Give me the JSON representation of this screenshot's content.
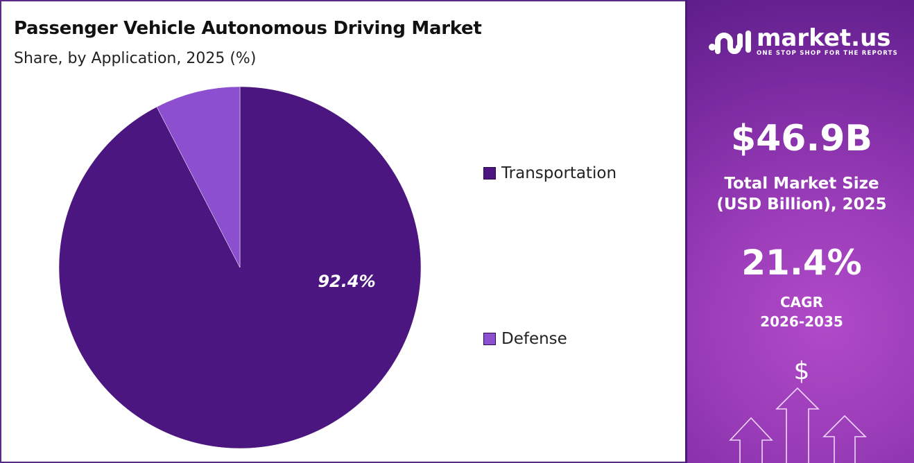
{
  "title": "Passenger Vehicle Autonomous Driving Market",
  "subtitle": "Share, by Application, 2025 (%)",
  "chart_data": {
    "type": "pie",
    "title": "Passenger Vehicle Autonomous Driving Market",
    "subtitle": "Share, by Application, 2025 (%)",
    "categories": [
      "Transportation",
      "Defense"
    ],
    "values": [
      92.4,
      7.6
    ],
    "data_labels": [
      "92.4%",
      ""
    ],
    "colors": [
      "#4b1680",
      "#8b4fd0"
    ],
    "legend": "right"
  },
  "sidebar": {
    "brand": "market.us",
    "tagline": "ONE STOP SHOP FOR THE REPORTS",
    "market_size": "$46.9B",
    "market_size_label_1": "Total Market Size",
    "market_size_label_2": "(USD Billion), 2025",
    "cagr": "21.4%",
    "cagr_label_1": "CAGR",
    "cagr_label_2": "2026-2035",
    "dollar_symbol": "$"
  }
}
